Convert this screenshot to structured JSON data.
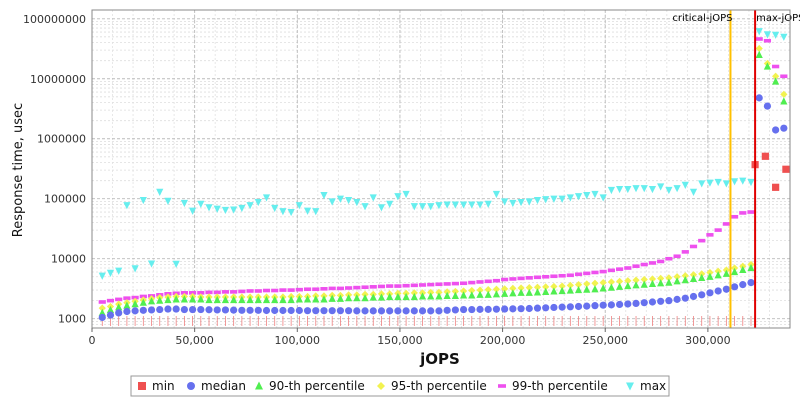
{
  "chart_data": {
    "type": "scatter",
    "xlabel": "jOPS",
    "ylabel": "Response time, usec",
    "xlim": [
      0,
      340000
    ],
    "ylim": [
      700,
      140000000
    ],
    "yscale": "log",
    "grid": true,
    "legend_placement": "bottom",
    "x_ticks": [
      0,
      50000,
      100000,
      150000,
      200000,
      250000,
      300000
    ],
    "x_tick_labels": [
      "0",
      "50,000",
      "100,000",
      "150,000",
      "200,000",
      "250,000",
      "300,000"
    ],
    "y_ticks": [
      1000,
      10000,
      100000,
      1000000,
      10000000,
      100000000
    ],
    "y_tick_labels": [
      "1000",
      "10000",
      "100000",
      "1000000",
      "10000000",
      "100000000"
    ],
    "annotations": [
      {
        "label": "critical-jOPS",
        "x": 311000,
        "color": "#ffc000"
      },
      {
        "label": "max-jOPS",
        "x": 323000,
        "color": "#e00000"
      }
    ],
    "series": [
      {
        "name": "min",
        "color": "#ef5050",
        "marker": "square",
        "x": [
          323000,
          328000,
          333000,
          338000
        ],
        "y": [
          370000,
          510000,
          155000,
          310000
        ]
      },
      {
        "name": "median",
        "color": "#6670ee",
        "marker": "circle",
        "x": [
          5000,
          9000,
          13000,
          17000,
          21000,
          25000,
          29000,
          33000,
          37000,
          41000,
          45000,
          49000,
          53000,
          57000,
          61000,
          65000,
          69000,
          73000,
          77000,
          81000,
          85000,
          89000,
          93000,
          97000,
          101000,
          105000,
          109000,
          113000,
          117000,
          121000,
          125000,
          129000,
          133000,
          137000,
          141000,
          145000,
          149000,
          153000,
          157000,
          161000,
          165000,
          169000,
          173000,
          177000,
          181000,
          185000,
          189000,
          193000,
          197000,
          201000,
          205000,
          209000,
          213000,
          217000,
          221000,
          225000,
          229000,
          233000,
          237000,
          241000,
          245000,
          249000,
          253000,
          257000,
          261000,
          265000,
          269000,
          273000,
          277000,
          281000,
          285000,
          289000,
          293000,
          297000,
          301000,
          305000,
          309000,
          313000,
          317000,
          321000,
          325000,
          329000,
          333000,
          337000
        ],
        "y": [
          1050,
          1150,
          1250,
          1320,
          1350,
          1380,
          1400,
          1420,
          1450,
          1450,
          1420,
          1420,
          1420,
          1410,
          1400,
          1400,
          1390,
          1380,
          1380,
          1380,
          1370,
          1370,
          1370,
          1370,
          1370,
          1360,
          1360,
          1360,
          1360,
          1360,
          1360,
          1350,
          1350,
          1350,
          1350,
          1350,
          1350,
          1350,
          1350,
          1350,
          1350,
          1350,
          1380,
          1400,
          1420,
          1420,
          1430,
          1430,
          1440,
          1450,
          1460,
          1470,
          1480,
          1500,
          1520,
          1540,
          1560,
          1580,
          1600,
          1620,
          1650,
          1680,
          1700,
          1730,
          1760,
          1800,
          1850,
          1900,
          1950,
          2000,
          2100,
          2200,
          2350,
          2500,
          2700,
          2900,
          3100,
          3400,
          3700,
          4000,
          4800000,
          3500000,
          1400000,
          1500000
        ]
      },
      {
        "name": "90-th percentile",
        "color": "#50ee50",
        "marker": "triangle",
        "x": [
          5000,
          9000,
          13000,
          17000,
          21000,
          25000,
          29000,
          33000,
          37000,
          41000,
          45000,
          49000,
          53000,
          57000,
          61000,
          65000,
          69000,
          73000,
          77000,
          81000,
          85000,
          89000,
          93000,
          97000,
          101000,
          105000,
          109000,
          113000,
          117000,
          121000,
          125000,
          129000,
          133000,
          137000,
          141000,
          145000,
          149000,
          153000,
          157000,
          161000,
          165000,
          169000,
          173000,
          177000,
          181000,
          185000,
          189000,
          193000,
          197000,
          201000,
          205000,
          209000,
          213000,
          217000,
          221000,
          225000,
          229000,
          233000,
          237000,
          241000,
          245000,
          249000,
          253000,
          257000,
          261000,
          265000,
          269000,
          273000,
          277000,
          281000,
          285000,
          289000,
          293000,
          297000,
          301000,
          305000,
          309000,
          313000,
          317000,
          321000,
          325000,
          329000,
          333000,
          337000
        ],
        "y": [
          1250,
          1400,
          1550,
          1650,
          1750,
          1850,
          1950,
          2000,
          2050,
          2100,
          2100,
          2100,
          2100,
          2050,
          2050,
          2050,
          2050,
          2050,
          2050,
          2050,
          2050,
          2050,
          2050,
          2050,
          2100,
          2100,
          2100,
          2100,
          2150,
          2150,
          2200,
          2200,
          2200,
          2250,
          2250,
          2300,
          2300,
          2300,
          2300,
          2350,
          2350,
          2350,
          2400,
          2400,
          2450,
          2450,
          2500,
          2500,
          2550,
          2600,
          2650,
          2700,
          2700,
          2750,
          2800,
          2850,
          2900,
          2950,
          3000,
          3050,
          3100,
          3200,
          3300,
          3400,
          3500,
          3600,
          3700,
          3800,
          3900,
          4000,
          4200,
          4400,
          4600,
          4800,
          5000,
          5300,
          5600,
          6000,
          6500,
          7000,
          25000000,
          16000000,
          9000000,
          4200000
        ]
      },
      {
        "name": "95-th percentile",
        "color": "#f2f250",
        "marker": "diamond",
        "x": [
          5000,
          9000,
          13000,
          17000,
          21000,
          25000,
          29000,
          33000,
          37000,
          41000,
          45000,
          49000,
          53000,
          57000,
          61000,
          65000,
          69000,
          73000,
          77000,
          81000,
          85000,
          89000,
          93000,
          97000,
          101000,
          105000,
          109000,
          113000,
          117000,
          121000,
          125000,
          129000,
          133000,
          137000,
          141000,
          145000,
          149000,
          153000,
          157000,
          161000,
          165000,
          169000,
          173000,
          177000,
          181000,
          185000,
          189000,
          193000,
          197000,
          201000,
          205000,
          209000,
          213000,
          217000,
          221000,
          225000,
          229000,
          233000,
          237000,
          241000,
          245000,
          249000,
          253000,
          257000,
          261000,
          265000,
          269000,
          273000,
          277000,
          281000,
          285000,
          289000,
          293000,
          297000,
          301000,
          305000,
          309000,
          313000,
          317000,
          321000,
          325000,
          329000,
          333000,
          337000
        ],
        "y": [
          1500,
          1600,
          1750,
          1850,
          1950,
          2050,
          2150,
          2250,
          2300,
          2350,
          2350,
          2350,
          2300,
          2300,
          2300,
          2300,
          2300,
          2300,
          2300,
          2300,
          2300,
          2300,
          2300,
          2350,
          2350,
          2350,
          2400,
          2400,
          2450,
          2450,
          2500,
          2500,
          2550,
          2550,
          2600,
          2600,
          2650,
          2650,
          2700,
          2700,
          2750,
          2750,
          2800,
          2850,
          2900,
          2950,
          3000,
          3050,
          3100,
          3150,
          3200,
          3250,
          3300,
          3350,
          3400,
          3450,
          3500,
          3600,
          3700,
          3800,
          3900,
          4000,
          4100,
          4200,
          4300,
          4400,
          4500,
          4600,
          4700,
          4800,
          5000,
          5200,
          5400,
          5600,
          5900,
          6200,
          6500,
          7000,
          7500,
          8000,
          32000000,
          18000000,
          11000000,
          5500000
        ]
      },
      {
        "name": "99-th percentile",
        "color": "#ee50ee",
        "marker": "dash",
        "x": [
          5000,
          9000,
          13000,
          17000,
          21000,
          25000,
          29000,
          33000,
          37000,
          41000,
          45000,
          49000,
          53000,
          57000,
          61000,
          65000,
          69000,
          73000,
          77000,
          81000,
          85000,
          89000,
          93000,
          97000,
          101000,
          105000,
          109000,
          113000,
          117000,
          121000,
          125000,
          129000,
          133000,
          137000,
          141000,
          145000,
          149000,
          153000,
          157000,
          161000,
          165000,
          169000,
          173000,
          177000,
          181000,
          185000,
          189000,
          193000,
          197000,
          201000,
          205000,
          209000,
          213000,
          217000,
          221000,
          225000,
          229000,
          233000,
          237000,
          241000,
          245000,
          249000,
          253000,
          257000,
          261000,
          265000,
          269000,
          273000,
          277000,
          281000,
          285000,
          289000,
          293000,
          297000,
          301000,
          305000,
          309000,
          313000,
          317000,
          321000,
          325000,
          329000,
          333000,
          337000
        ],
        "y": [
          1900,
          2000,
          2100,
          2200,
          2250,
          2350,
          2400,
          2500,
          2600,
          2650,
          2700,
          2700,
          2700,
          2750,
          2750,
          2800,
          2800,
          2850,
          2900,
          2900,
          2950,
          2950,
          3000,
          3000,
          3050,
          3100,
          3100,
          3150,
          3200,
          3200,
          3250,
          3300,
          3350,
          3400,
          3450,
          3500,
          3500,
          3550,
          3600,
          3650,
          3700,
          3750,
          3800,
          3850,
          3900,
          4000,
          4100,
          4200,
          4300,
          4500,
          4600,
          4700,
          4800,
          4900,
          5000,
          5100,
          5200,
          5300,
          5500,
          5700,
          5900,
          6100,
          6400,
          6700,
          7000,
          7500,
          8000,
          8500,
          9000,
          10000,
          11000,
          13000,
          16000,
          20000,
          25000,
          30000,
          38000,
          50000,
          58000,
          60000,
          46000000,
          43000000,
          16000000,
          11000000
        ]
      },
      {
        "name": "max",
        "color": "#66eeee",
        "marker": "triangle-down",
        "x": [
          5000,
          9000,
          13000,
          17000,
          21000,
          25000,
          29000,
          33000,
          37000,
          41000,
          45000,
          49000,
          53000,
          57000,
          61000,
          65000,
          69000,
          73000,
          77000,
          81000,
          85000,
          89000,
          93000,
          97000,
          101000,
          105000,
          109000,
          113000,
          117000,
          121000,
          125000,
          129000,
          133000,
          137000,
          141000,
          145000,
          149000,
          153000,
          157000,
          161000,
          165000,
          169000,
          173000,
          177000,
          181000,
          185000,
          189000,
          193000,
          197000,
          201000,
          205000,
          209000,
          213000,
          217000,
          221000,
          225000,
          229000,
          233000,
          237000,
          241000,
          245000,
          249000,
          253000,
          257000,
          261000,
          265000,
          269000,
          273000,
          277000,
          281000,
          285000,
          289000,
          293000,
          297000,
          301000,
          305000,
          309000,
          313000,
          317000,
          321000,
          325000,
          329000,
          333000,
          337000
        ],
        "y": [
          5200,
          5800,
          6300,
          78000,
          6900,
          95000,
          8300,
          130000,
          92000,
          8200,
          85000,
          63000,
          82000,
          72000,
          68000,
          65000,
          66000,
          70000,
          78000,
          88000,
          105000,
          70000,
          62000,
          60000,
          78000,
          63000,
          62000,
          115000,
          90000,
          100000,
          95000,
          88000,
          75000,
          105000,
          72000,
          82000,
          110000,
          120000,
          75000,
          75000,
          75000,
          78000,
          80000,
          80000,
          80000,
          80000,
          80000,
          82000,
          120000,
          90000,
          85000,
          88000,
          90000,
          95000,
          98000,
          100000,
          100000,
          105000,
          110000,
          115000,
          120000,
          105000,
          140000,
          145000,
          145000,
          150000,
          150000,
          145000,
          160000,
          140000,
          150000,
          170000,
          130000,
          180000,
          185000,
          190000,
          180000,
          195000,
          200000,
          190000,
          62000000,
          55000000,
          54000000,
          50000000
        ]
      }
    ]
  },
  "legend": {
    "items": [
      {
        "label": "min",
        "color": "#ef5050"
      },
      {
        "label": "median",
        "color": "#6670ee"
      },
      {
        "label": "90-th percentile",
        "color": "#50ee50"
      },
      {
        "label": "95-th percentile",
        "color": "#f2f250"
      },
      {
        "label": "99-th percentile",
        "color": "#ee50ee"
      },
      {
        "label": "max",
        "color": "#66eeee"
      }
    ]
  }
}
